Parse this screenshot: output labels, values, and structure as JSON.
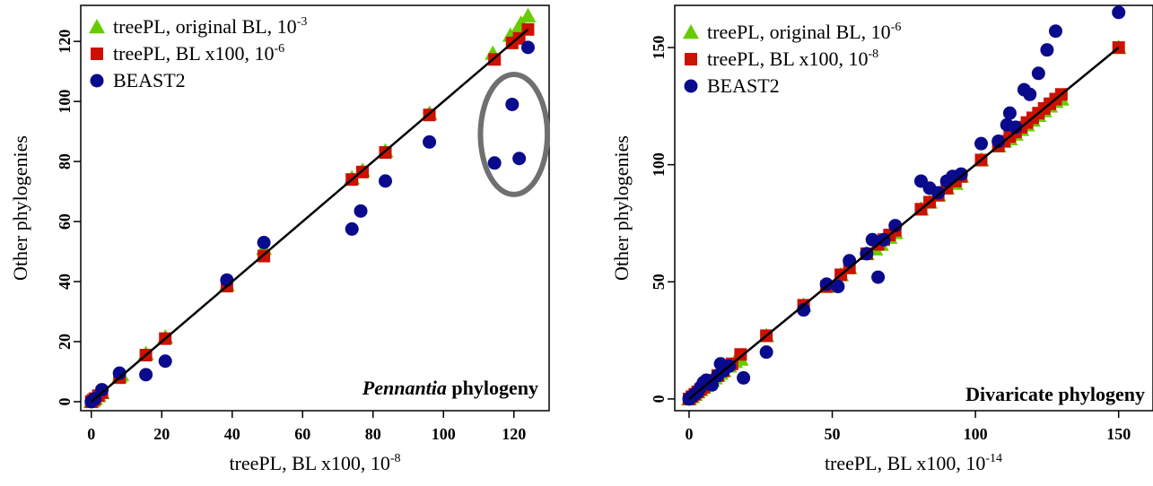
{
  "chart_data": [
    {
      "type": "scatter",
      "xlabel": "treePL, BL x100, 10",
      "xlabel_exp": "-8",
      "ylabel": "Other phylogenies",
      "title_italic": "Pennantia",
      "title_rest": " phylogeny",
      "xlim": [
        -3,
        130
      ],
      "ylim": [
        -3,
        132
      ],
      "xticks": [
        0,
        20,
        40,
        60,
        80,
        100,
        120
      ],
      "yticks": [
        0,
        20,
        40,
        60,
        80,
        100,
        120
      ],
      "legend": "top-left",
      "grid": false,
      "identity_line": [
        [
          0,
          0
        ],
        [
          124,
          124
        ]
      ],
      "annotation": {
        "shape": "ellipse",
        "cx": 120,
        "cy": 89,
        "rx": 9.5,
        "ry": 20,
        "color": "#707070"
      },
      "series": [
        {
          "name": "treePL, original BL, 10",
          "name_exp": "-3",
          "marker": "triangle",
          "color": "#66cc00",
          "points": [
            [
              0,
              0
            ],
            [
              0.5,
              0.5
            ],
            [
              1,
              1
            ],
            [
              2,
              2
            ],
            [
              3,
              3
            ],
            [
              8,
              8.5
            ],
            [
              8.5,
              9
            ],
            [
              15.5,
              16
            ],
            [
              21,
              21.5
            ],
            [
              38.5,
              39
            ],
            [
              49,
              51
            ],
            [
              74,
              74.5
            ],
            [
              77,
              77
            ],
            [
              83.5,
              83.5
            ],
            [
              96,
              96
            ],
            [
              114,
              116
            ],
            [
              119,
              122
            ],
            [
              121,
              124
            ],
            [
              122,
              126
            ],
            [
              124,
              128.5
            ]
          ]
        },
        {
          "name": "treePL, BL x100, 10",
          "name_exp": "-6",
          "marker": "square",
          "color": "#cc1100",
          "points": [
            [
              0,
              0
            ],
            [
              0.5,
              0.5
            ],
            [
              1,
              1
            ],
            [
              2,
              2
            ],
            [
              3,
              3
            ],
            [
              8,
              8
            ],
            [
              15.5,
              15.5
            ],
            [
              21,
              21
            ],
            [
              38.5,
              38.5
            ],
            [
              49,
              48.5
            ],
            [
              74,
              74
            ],
            [
              77,
              76.5
            ],
            [
              83.5,
              83
            ],
            [
              96,
              95.5
            ],
            [
              114.5,
              114
            ],
            [
              119.5,
              119.5
            ],
            [
              121.5,
              121
            ],
            [
              124,
              124
            ]
          ]
        },
        {
          "name": "BEAST2",
          "marker": "circle",
          "color": "#0a0a8c",
          "points": [
            [
              0,
              0
            ],
            [
              1,
              1
            ],
            [
              3,
              4
            ],
            [
              8,
              9.5
            ],
            [
              15.5,
              9
            ],
            [
              21,
              13.5
            ],
            [
              38.5,
              40.5
            ],
            [
              49,
              53
            ],
            [
              74,
              57.5
            ],
            [
              76.5,
              63.5
            ],
            [
              83.5,
              73.5
            ],
            [
              96,
              86.5
            ],
            [
              114.5,
              79.5
            ],
            [
              119.5,
              99
            ],
            [
              121.5,
              81
            ],
            [
              124,
              118
            ]
          ]
        }
      ]
    },
    {
      "type": "scatter",
      "xlabel": "treePL, BL x100, 10",
      "xlabel_exp": "-14",
      "ylabel": "Other phylogenies",
      "title_italic": "",
      "title_rest": "Divaricate phylogeny",
      "xlim": [
        -5,
        162
      ],
      "ylim": [
        -5,
        168
      ],
      "xticks": [
        0,
        50,
        100,
        150
      ],
      "yticks": [
        0,
        50,
        100,
        150
      ],
      "legend": "top-left",
      "grid": false,
      "identity_line": [
        [
          0,
          0
        ],
        [
          150,
          150
        ]
      ],
      "series": [
        {
          "name": "treePL, original BL, 10",
          "name_exp": "-6",
          "marker": "triangle",
          "color": "#66cc00",
          "points": [
            [
              0,
              0
            ],
            [
              1,
              1
            ],
            [
              2,
              2
            ],
            [
              3,
              3
            ],
            [
              4,
              4
            ],
            [
              5,
              5
            ],
            [
              6,
              6
            ],
            [
              7,
              7
            ],
            [
              8,
              8
            ],
            [
              9,
              9
            ],
            [
              10,
              10
            ],
            [
              11,
              11
            ],
            [
              12,
              12
            ],
            [
              14,
              14
            ],
            [
              16,
              16
            ],
            [
              18,
              17
            ],
            [
              27,
              27
            ],
            [
              40,
              40
            ],
            [
              48,
              48
            ],
            [
              53,
              53
            ],
            [
              56,
              56
            ],
            [
              62,
              62
            ],
            [
              65,
              64
            ],
            [
              67,
              66
            ],
            [
              70,
              69
            ],
            [
              72,
              71
            ],
            [
              81,
              81
            ],
            [
              84,
              84
            ],
            [
              87,
              87
            ],
            [
              90,
              90
            ],
            [
              93,
              92
            ],
            [
              95,
              95
            ],
            [
              102,
              102
            ],
            [
              108,
              108
            ],
            [
              110,
              110
            ],
            [
              112,
              111
            ],
            [
              114,
              113
            ],
            [
              116,
              115
            ],
            [
              118,
              117
            ],
            [
              120,
              119
            ],
            [
              122,
              121
            ],
            [
              124,
              123
            ],
            [
              126,
              125
            ],
            [
              128,
              127
            ],
            [
              130,
              128
            ],
            [
              150,
              150
            ]
          ]
        },
        {
          "name": "treePL, BL x100, 10",
          "name_exp": "-8",
          "marker": "square",
          "color": "#cc1100",
          "points": [
            [
              0,
              0
            ],
            [
              1,
              1
            ],
            [
              2,
              2
            ],
            [
              3,
              3
            ],
            [
              4,
              4
            ],
            [
              5,
              5
            ],
            [
              6,
              6
            ],
            [
              7,
              7
            ],
            [
              8,
              8
            ],
            [
              10,
              10
            ],
            [
              12,
              12
            ],
            [
              15,
              15
            ],
            [
              18,
              19
            ],
            [
              27,
              27
            ],
            [
              40,
              40
            ],
            [
              48,
              48
            ],
            [
              53,
              53
            ],
            [
              56,
              56
            ],
            [
              62,
              62
            ],
            [
              66,
              66
            ],
            [
              68,
              68
            ],
            [
              70,
              70
            ],
            [
              72,
              72
            ],
            [
              81,
              81
            ],
            [
              84,
              84
            ],
            [
              87,
              87
            ],
            [
              90,
              90
            ],
            [
              93,
              93
            ],
            [
              95,
              95
            ],
            [
              102,
              102
            ],
            [
              108,
              108
            ],
            [
              110,
              110
            ],
            [
              112,
              112
            ],
            [
              114,
              114
            ],
            [
              116,
              116
            ],
            [
              118,
              118
            ],
            [
              120,
              120
            ],
            [
              122,
              122
            ],
            [
              124,
              124
            ],
            [
              126,
              126
            ],
            [
              128,
              128
            ],
            [
              130,
              130
            ],
            [
              150,
              150
            ]
          ]
        },
        {
          "name": "BEAST2",
          "marker": "circle",
          "color": "#0a0a8c",
          "points": [
            [
              0,
              0
            ],
            [
              1,
              1
            ],
            [
              2,
              2
            ],
            [
              3,
              3
            ],
            [
              4,
              5
            ],
            [
              5,
              7
            ],
            [
              6,
              8
            ],
            [
              8,
              6
            ],
            [
              10,
              10
            ],
            [
              11,
              15
            ],
            [
              12,
              12
            ],
            [
              14,
              14
            ],
            [
              19,
              9
            ],
            [
              27,
              20
            ],
            [
              40,
              38
            ],
            [
              48,
              49
            ],
            [
              52,
              48
            ],
            [
              56,
              59
            ],
            [
              62,
              62
            ],
            [
              64,
              68
            ],
            [
              66,
              52
            ],
            [
              68,
              68
            ],
            [
              72,
              74
            ],
            [
              81,
              93
            ],
            [
              84,
              90
            ],
            [
              87,
              88
            ],
            [
              90,
              93
            ],
            [
              92,
              95
            ],
            [
              95,
              96
            ],
            [
              102,
              109
            ],
            [
              108,
              110
            ],
            [
              111,
              117
            ],
            [
              112,
              122
            ],
            [
              114,
              116
            ],
            [
              117,
              132
            ],
            [
              119,
              130
            ],
            [
              122,
              139
            ],
            [
              125,
              149
            ],
            [
              128,
              157
            ],
            [
              150,
              165
            ]
          ]
        }
      ]
    }
  ]
}
